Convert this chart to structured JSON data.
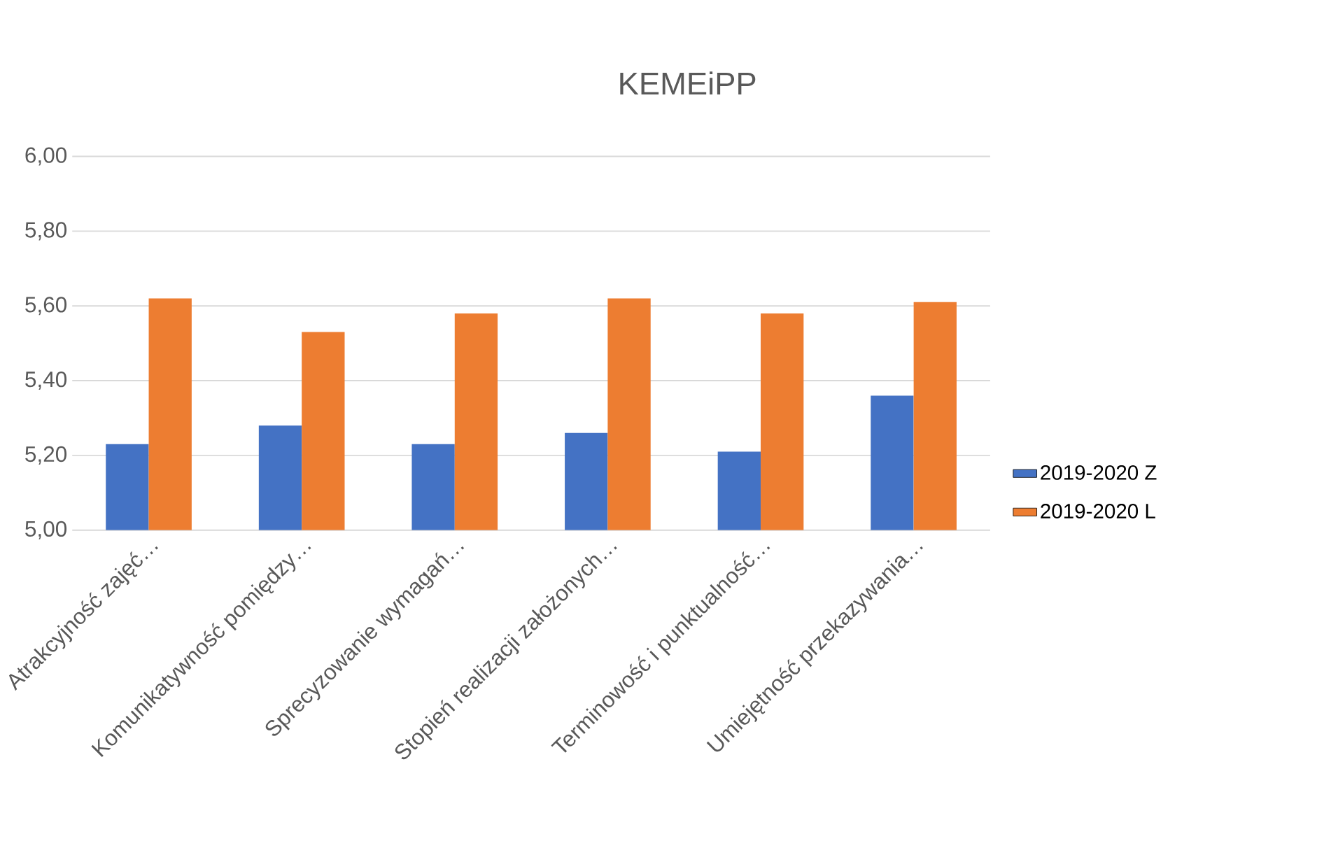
{
  "chart_data": {
    "type": "bar",
    "title": "KEMEiPP",
    "categories": [
      "Atrakcyjność zajęć…",
      "Komunikatywność pomiędzy…",
      "Sprecyzowanie wymagań…",
      "Stopień realizacji założonych…",
      "Terminowość i punktualność…",
      "Umiejętność przekazywania…"
    ],
    "series": [
      {
        "name": "2019-2020 Z",
        "color": "#4472c4",
        "values": [
          5.23,
          5.28,
          5.23,
          5.26,
          5.21,
          5.36
        ]
      },
      {
        "name": "2019-2020 L",
        "color": "#ed7d31",
        "values": [
          5.62,
          5.53,
          5.58,
          5.62,
          5.58,
          5.61
        ]
      }
    ],
    "ylim": [
      5.0,
      6.0
    ],
    "yticks": [
      {
        "value": 5.0,
        "label": "5,00"
      },
      {
        "value": 5.2,
        "label": "5,20"
      },
      {
        "value": 5.4,
        "label": "5,40"
      },
      {
        "value": 5.6,
        "label": "5,60"
      },
      {
        "value": 5.8,
        "label": "5,80"
      },
      {
        "value": 6.0,
        "label": "6,00"
      }
    ],
    "grid": "y",
    "legend": "right"
  }
}
